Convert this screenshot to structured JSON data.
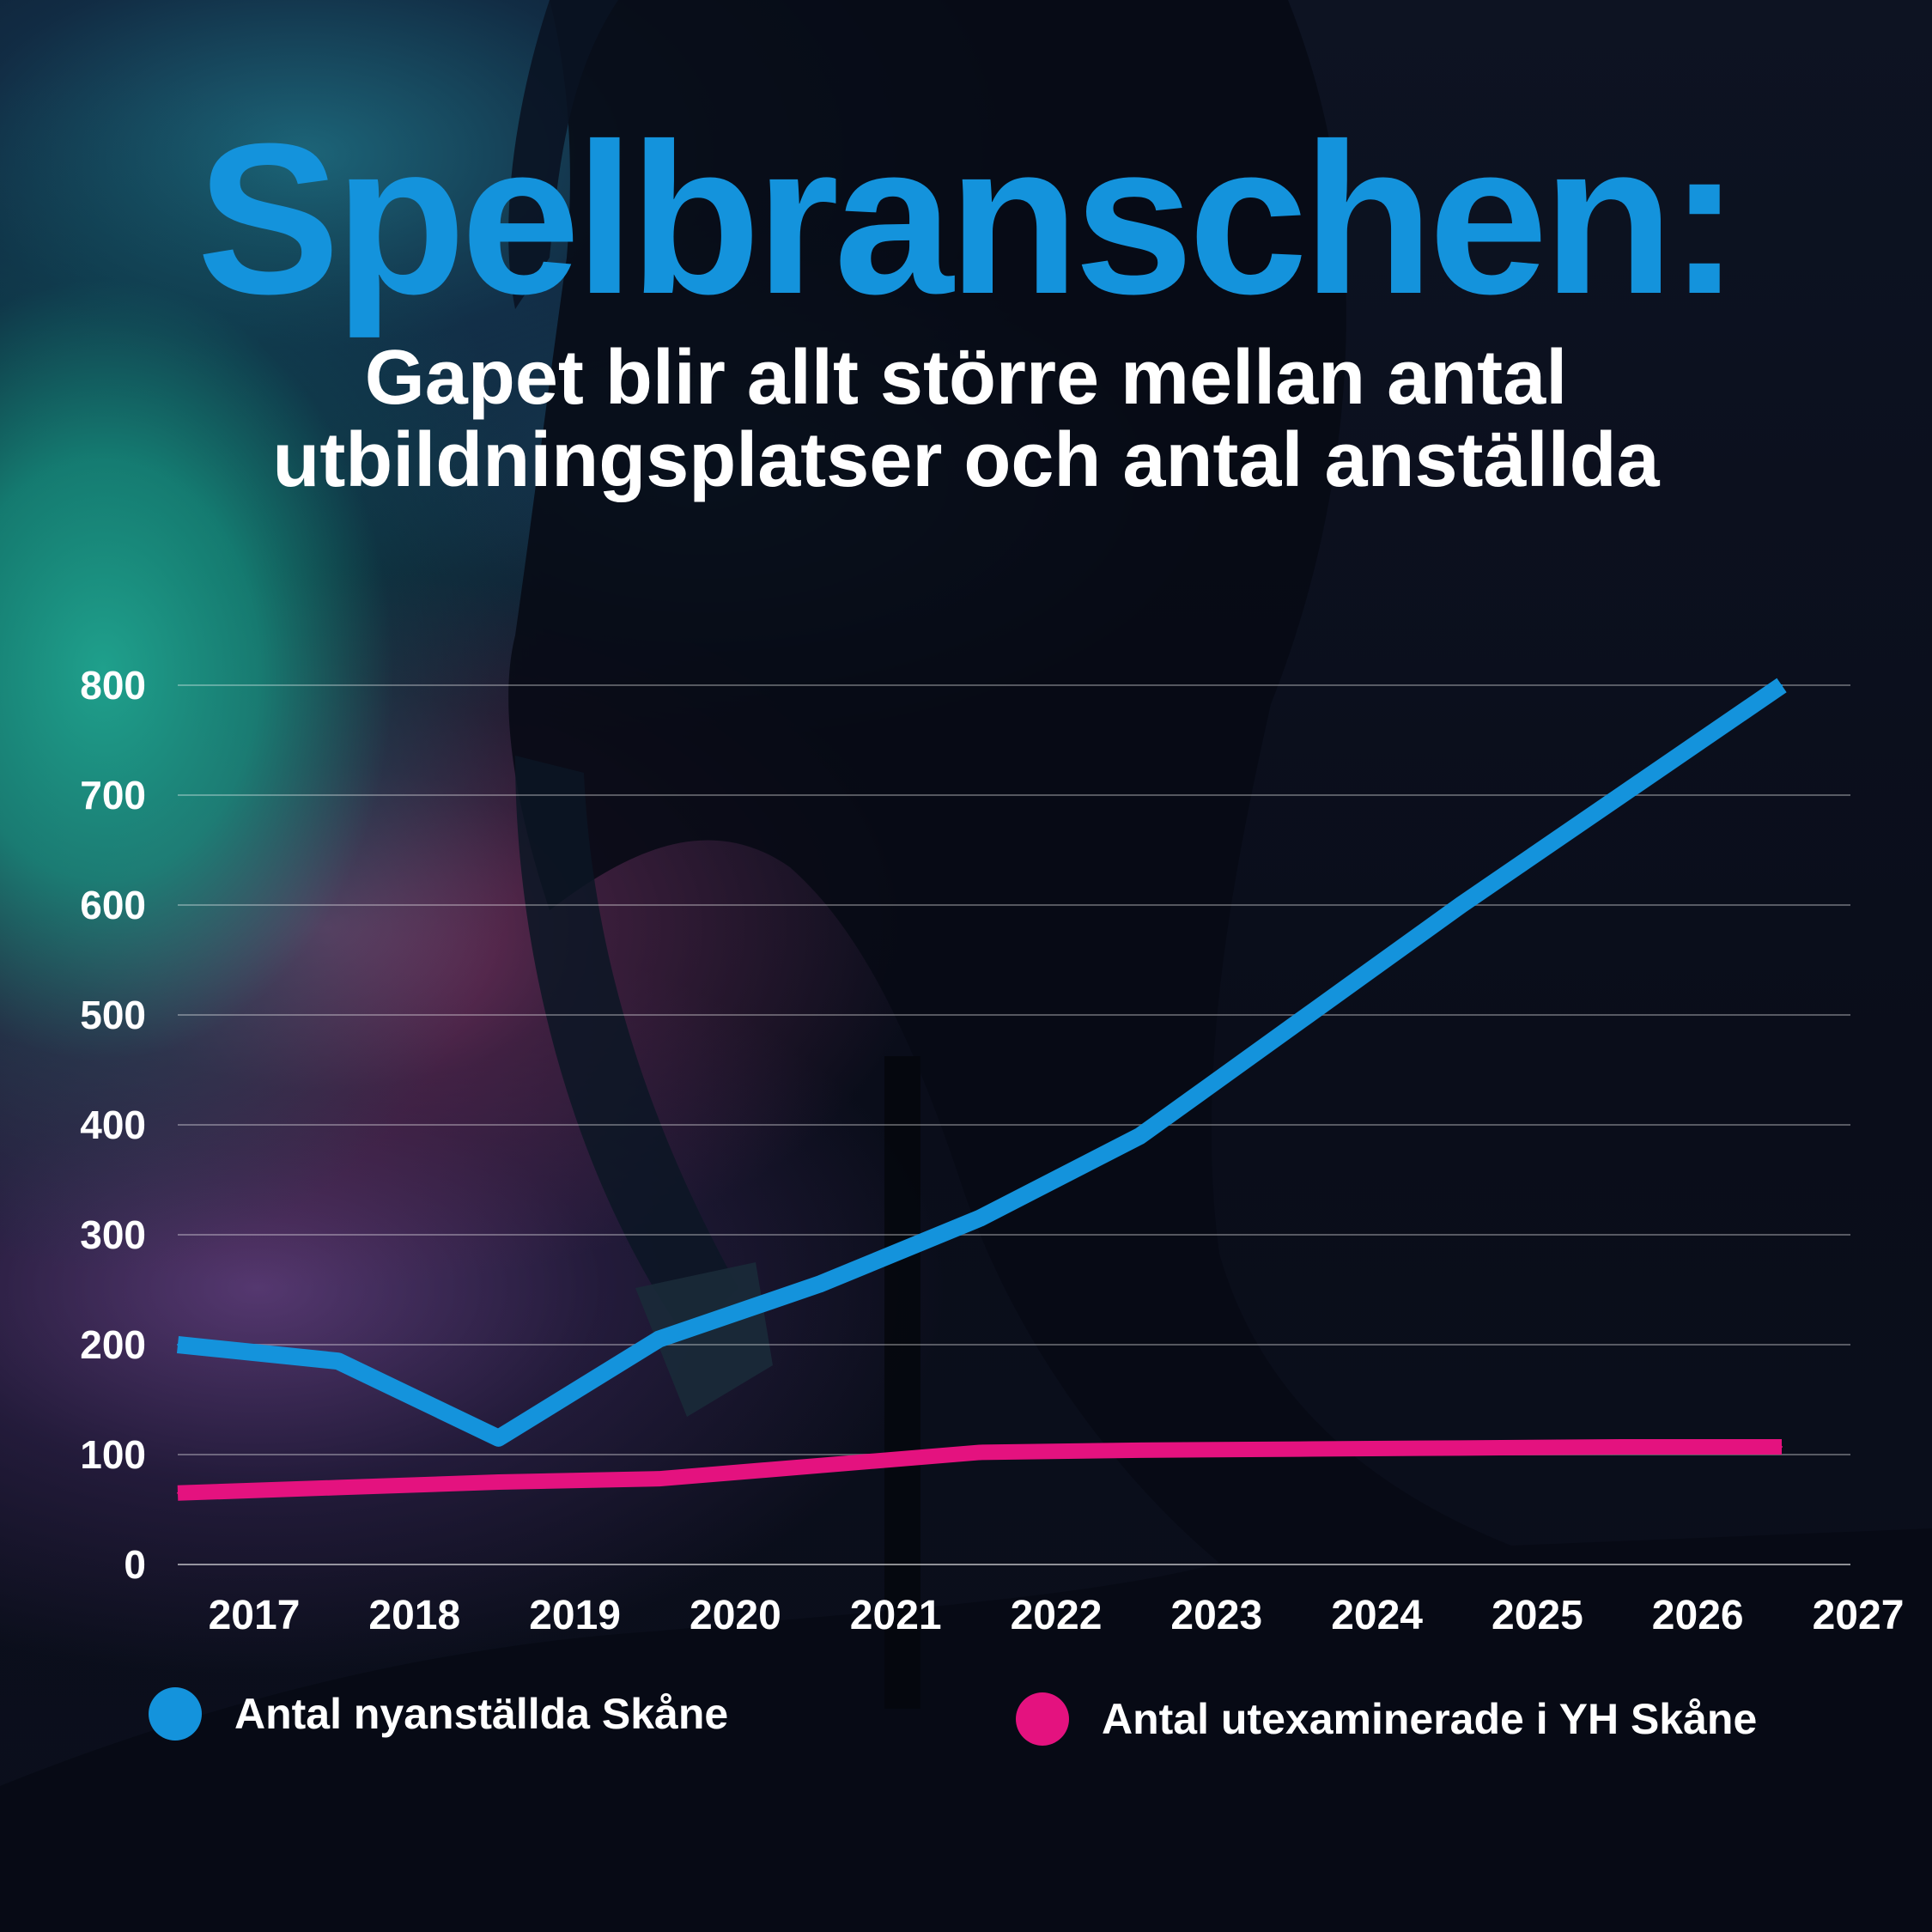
{
  "title": "Spelbranschen:",
  "subtitle": {
    "line1": "Gapet blir allt större mellan antal",
    "line2": "utbildningsplatser och antal anställda"
  },
  "chart_data": {
    "type": "line",
    "title": "Spelbranschen:",
    "subtitle": "Gapet blir allt större mellan antal utbildningsplatser och antal anställda",
    "xlabel": "",
    "ylabel": "",
    "categories": [
      "2017",
      "2018",
      "2019",
      "2020",
      "2021",
      "2022",
      "2023",
      "2024",
      "2025",
      "2026",
      "2027"
    ],
    "yticks": [
      0,
      100,
      200,
      300,
      400,
      500,
      600,
      700,
      800
    ],
    "ylim": [
      0,
      800
    ],
    "grid": true,
    "legend_position": "bottom",
    "series": [
      {
        "name": "Antal nyanställda Skåne",
        "color": "#1493dc",
        "values": [
          200,
          185,
          115,
          205,
          255,
          315,
          390,
          495,
          600,
          700,
          800
        ]
      },
      {
        "name": "Antal utexaminerade i YH Skåne",
        "color": "#e4127f",
        "values": [
          65,
          70,
          75,
          78,
          90,
          102,
          104,
          105,
          106,
          107,
          107
        ]
      }
    ]
  },
  "legend": [
    {
      "label": "Antal nyanställda Skåne",
      "color": "#1493dc"
    },
    {
      "label": "Antal utexaminerade i YH Skåne",
      "color": "#e4127f"
    }
  ]
}
